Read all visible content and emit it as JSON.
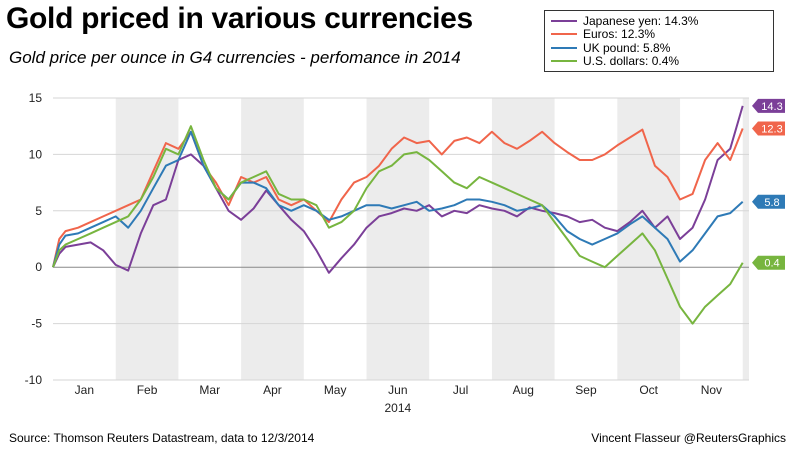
{
  "title": "Gold priced in various currencies",
  "subtitle": "Gold price per ounce in G4 currencies - perfomance in 2014",
  "footer": {
    "source": "Source: Thomson Reuters Datastream, data to 12/3/2014",
    "credit": "Vincent Flasseur @ReutersGraphics"
  },
  "chart_data": {
    "type": "line",
    "title": "Gold priced in various currencies",
    "xlabel": "2014",
    "ylabel": "",
    "ylim": [
      -10,
      15
    ],
    "yticks": [
      15,
      10,
      5,
      0,
      -5,
      -10
    ],
    "xlim": [
      0,
      11.1
    ],
    "month_labels": [
      "Jan",
      "Feb",
      "Mar",
      "Apr",
      "May",
      "Jun",
      "Jul",
      "Aug",
      "Sep",
      "Oct",
      "Nov"
    ],
    "shaded_bands": [
      [
        1,
        2
      ],
      [
        3,
        4
      ],
      [
        5,
        6
      ],
      [
        7,
        8
      ],
      [
        9,
        10
      ],
      [
        11,
        11.2
      ]
    ],
    "grid": true,
    "legend_position": "top-right",
    "x": [
      0,
      0.1,
      0.2,
      0.4,
      0.6,
      0.8,
      1.0,
      1.2,
      1.4,
      1.6,
      1.8,
      2.0,
      2.2,
      2.4,
      2.6,
      2.8,
      3.0,
      3.2,
      3.4,
      3.6,
      3.8,
      4.0,
      4.2,
      4.4,
      4.6,
      4.8,
      5.0,
      5.2,
      5.4,
      5.6,
      5.8,
      6.0,
      6.2,
      6.4,
      6.6,
      6.8,
      7.0,
      7.2,
      7.4,
      7.6,
      7.8,
      8.0,
      8.2,
      8.4,
      8.6,
      8.8,
      9.0,
      9.2,
      9.4,
      9.6,
      9.8,
      10.0,
      10.2,
      10.4,
      10.6,
      10.8,
      11.0
    ],
    "series": [
      {
        "name": "Japanese yen",
        "legend": "Japanese yen: 14.3%",
        "color": "#7b3f98",
        "end_label": "14.3",
        "values": [
          0,
          1.2,
          1.8,
          2.0,
          2.2,
          1.5,
          0.2,
          -0.3,
          3.0,
          5.5,
          6.0,
          9.5,
          10.0,
          9.0,
          7.0,
          5.0,
          4.2,
          5.2,
          6.8,
          5.5,
          4.2,
          3.2,
          1.5,
          -0.5,
          0.8,
          2.0,
          3.5,
          4.5,
          4.8,
          5.2,
          5.0,
          5.5,
          4.5,
          5.0,
          4.8,
          5.5,
          5.2,
          5.0,
          4.5,
          5.3,
          5.0,
          4.8,
          4.5,
          4.0,
          4.2,
          3.5,
          3.2,
          4.0,
          5.0,
          3.5,
          4.5,
          2.5,
          3.5,
          6.0,
          9.5,
          10.5,
          14.3
        ]
      },
      {
        "name": "Euros",
        "legend": "Euros: 12.3%",
        "color": "#f0654b",
        "end_label": "12.3",
        "values": [
          0,
          2.5,
          3.2,
          3.5,
          4.0,
          4.5,
          5.0,
          5.5,
          6.0,
          8.5,
          11.0,
          10.5,
          12.0,
          9.0,
          7.5,
          5.5,
          8.0,
          7.5,
          8.0,
          6.0,
          5.5,
          6.0,
          5.0,
          4.0,
          6.0,
          7.5,
          8.0,
          9.0,
          10.5,
          11.5,
          11.0,
          11.2,
          10.0,
          11.2,
          11.5,
          11.0,
          12.0,
          11.0,
          10.5,
          11.2,
          12.0,
          11.0,
          10.2,
          9.5,
          9.5,
          10.0,
          10.8,
          11.5,
          12.2,
          9.0,
          8.0,
          6.0,
          6.5,
          9.5,
          11.0,
          9.5,
          12.3
        ]
      },
      {
        "name": "UK pound",
        "legend": "UK pound: 5.8%",
        "color": "#2e7ab6",
        "end_label": "5.8",
        "values": [
          0,
          2.0,
          2.8,
          3.0,
          3.5,
          4.0,
          4.5,
          3.5,
          5.0,
          7.0,
          9.0,
          9.5,
          12.0,
          9.0,
          7.0,
          6.0,
          7.5,
          7.5,
          7.0,
          5.5,
          5.0,
          5.5,
          5.0,
          4.2,
          4.5,
          5.0,
          5.5,
          5.5,
          5.2,
          5.5,
          5.8,
          5.0,
          5.2,
          5.5,
          6.0,
          6.0,
          5.8,
          5.5,
          5.0,
          5.2,
          5.5,
          4.5,
          3.2,
          2.5,
          2.0,
          2.5,
          3.0,
          3.8,
          4.5,
          3.5,
          2.5,
          0.5,
          1.5,
          3.0,
          4.5,
          4.8,
          5.8
        ]
      },
      {
        "name": "U.S. dollars",
        "legend": "U.S. dollars: 0.4%",
        "color": "#77b53f",
        "end_label": "0.4",
        "values": [
          0,
          1.5,
          2.0,
          2.5,
          3.0,
          3.5,
          4.0,
          4.5,
          6.0,
          8.0,
          10.5,
          10.0,
          12.5,
          9.5,
          7.0,
          6.0,
          7.5,
          8.0,
          8.5,
          6.5,
          6.0,
          6.0,
          5.5,
          3.5,
          4.0,
          5.0,
          7.0,
          8.5,
          9.0,
          10.0,
          10.2,
          9.5,
          8.5,
          7.5,
          7.0,
          8.0,
          7.5,
          7.0,
          6.5,
          6.0,
          5.5,
          4.0,
          2.5,
          1.0,
          0.5,
          0.0,
          1.0,
          2.0,
          3.0,
          1.5,
          -1.0,
          -3.5,
          -5.0,
          -3.5,
          -2.5,
          -1.5,
          0.4
        ]
      }
    ]
  }
}
